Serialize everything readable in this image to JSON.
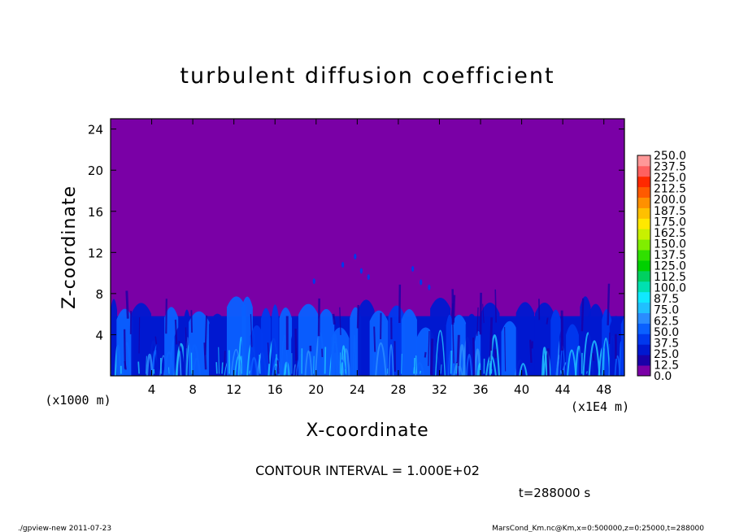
{
  "chart_data": {
    "type": "heatmap",
    "title": "turbulent diffusion coefficient",
    "xlabel": "X-coordinate",
    "ylabel": "Z-coordinate",
    "x_unit_label": "(x1E4 m)",
    "y_unit_label": "(x1000 m)",
    "xlim": [
      0,
      50
    ],
    "ylim": [
      0,
      25
    ],
    "x_ticks": [
      "4",
      "8",
      "12",
      "16",
      "20",
      "24",
      "28",
      "32",
      "36",
      "40",
      "44",
      "48"
    ],
    "y_ticks": [
      "4",
      "8",
      "12",
      "16",
      "20",
      "24"
    ],
    "colorbar": {
      "levels": [
        "0.0",
        "12.5",
        "25.0",
        "37.5",
        "50.0",
        "62.5",
        "75.0",
        "87.5",
        "100.0",
        "112.5",
        "125.0",
        "137.5",
        "150.0",
        "162.5",
        "175.0",
        "187.5",
        "200.0",
        "212.5",
        "225.0",
        "237.5",
        "250.0"
      ],
      "colors": [
        "#7a00a6",
        "#1a00a8",
        "#0018d0",
        "#0038ee",
        "#0a60ff",
        "#2a8cff",
        "#20c0ff",
        "#10e8ff",
        "#00e0b0",
        "#00d060",
        "#00d000",
        "#30e000",
        "#80ee00",
        "#c8f000",
        "#ffe800",
        "#ffc000",
        "#ff9000",
        "#ff5a00",
        "#ff2800",
        "#ff6060",
        "#ff9898"
      ]
    },
    "background_value": "0.0",
    "turbulent_layer_top_z": 7,
    "contour_interval_text": "CONTOUR INTERVAL = 1.000E+02",
    "time_text": "t=288000 s"
  },
  "footer": {
    "left": "./gpview-new  2011-07-23",
    "right": "MarsCond_Km.nc@Km,x=0:500000,z=0:25000,t=288000"
  }
}
